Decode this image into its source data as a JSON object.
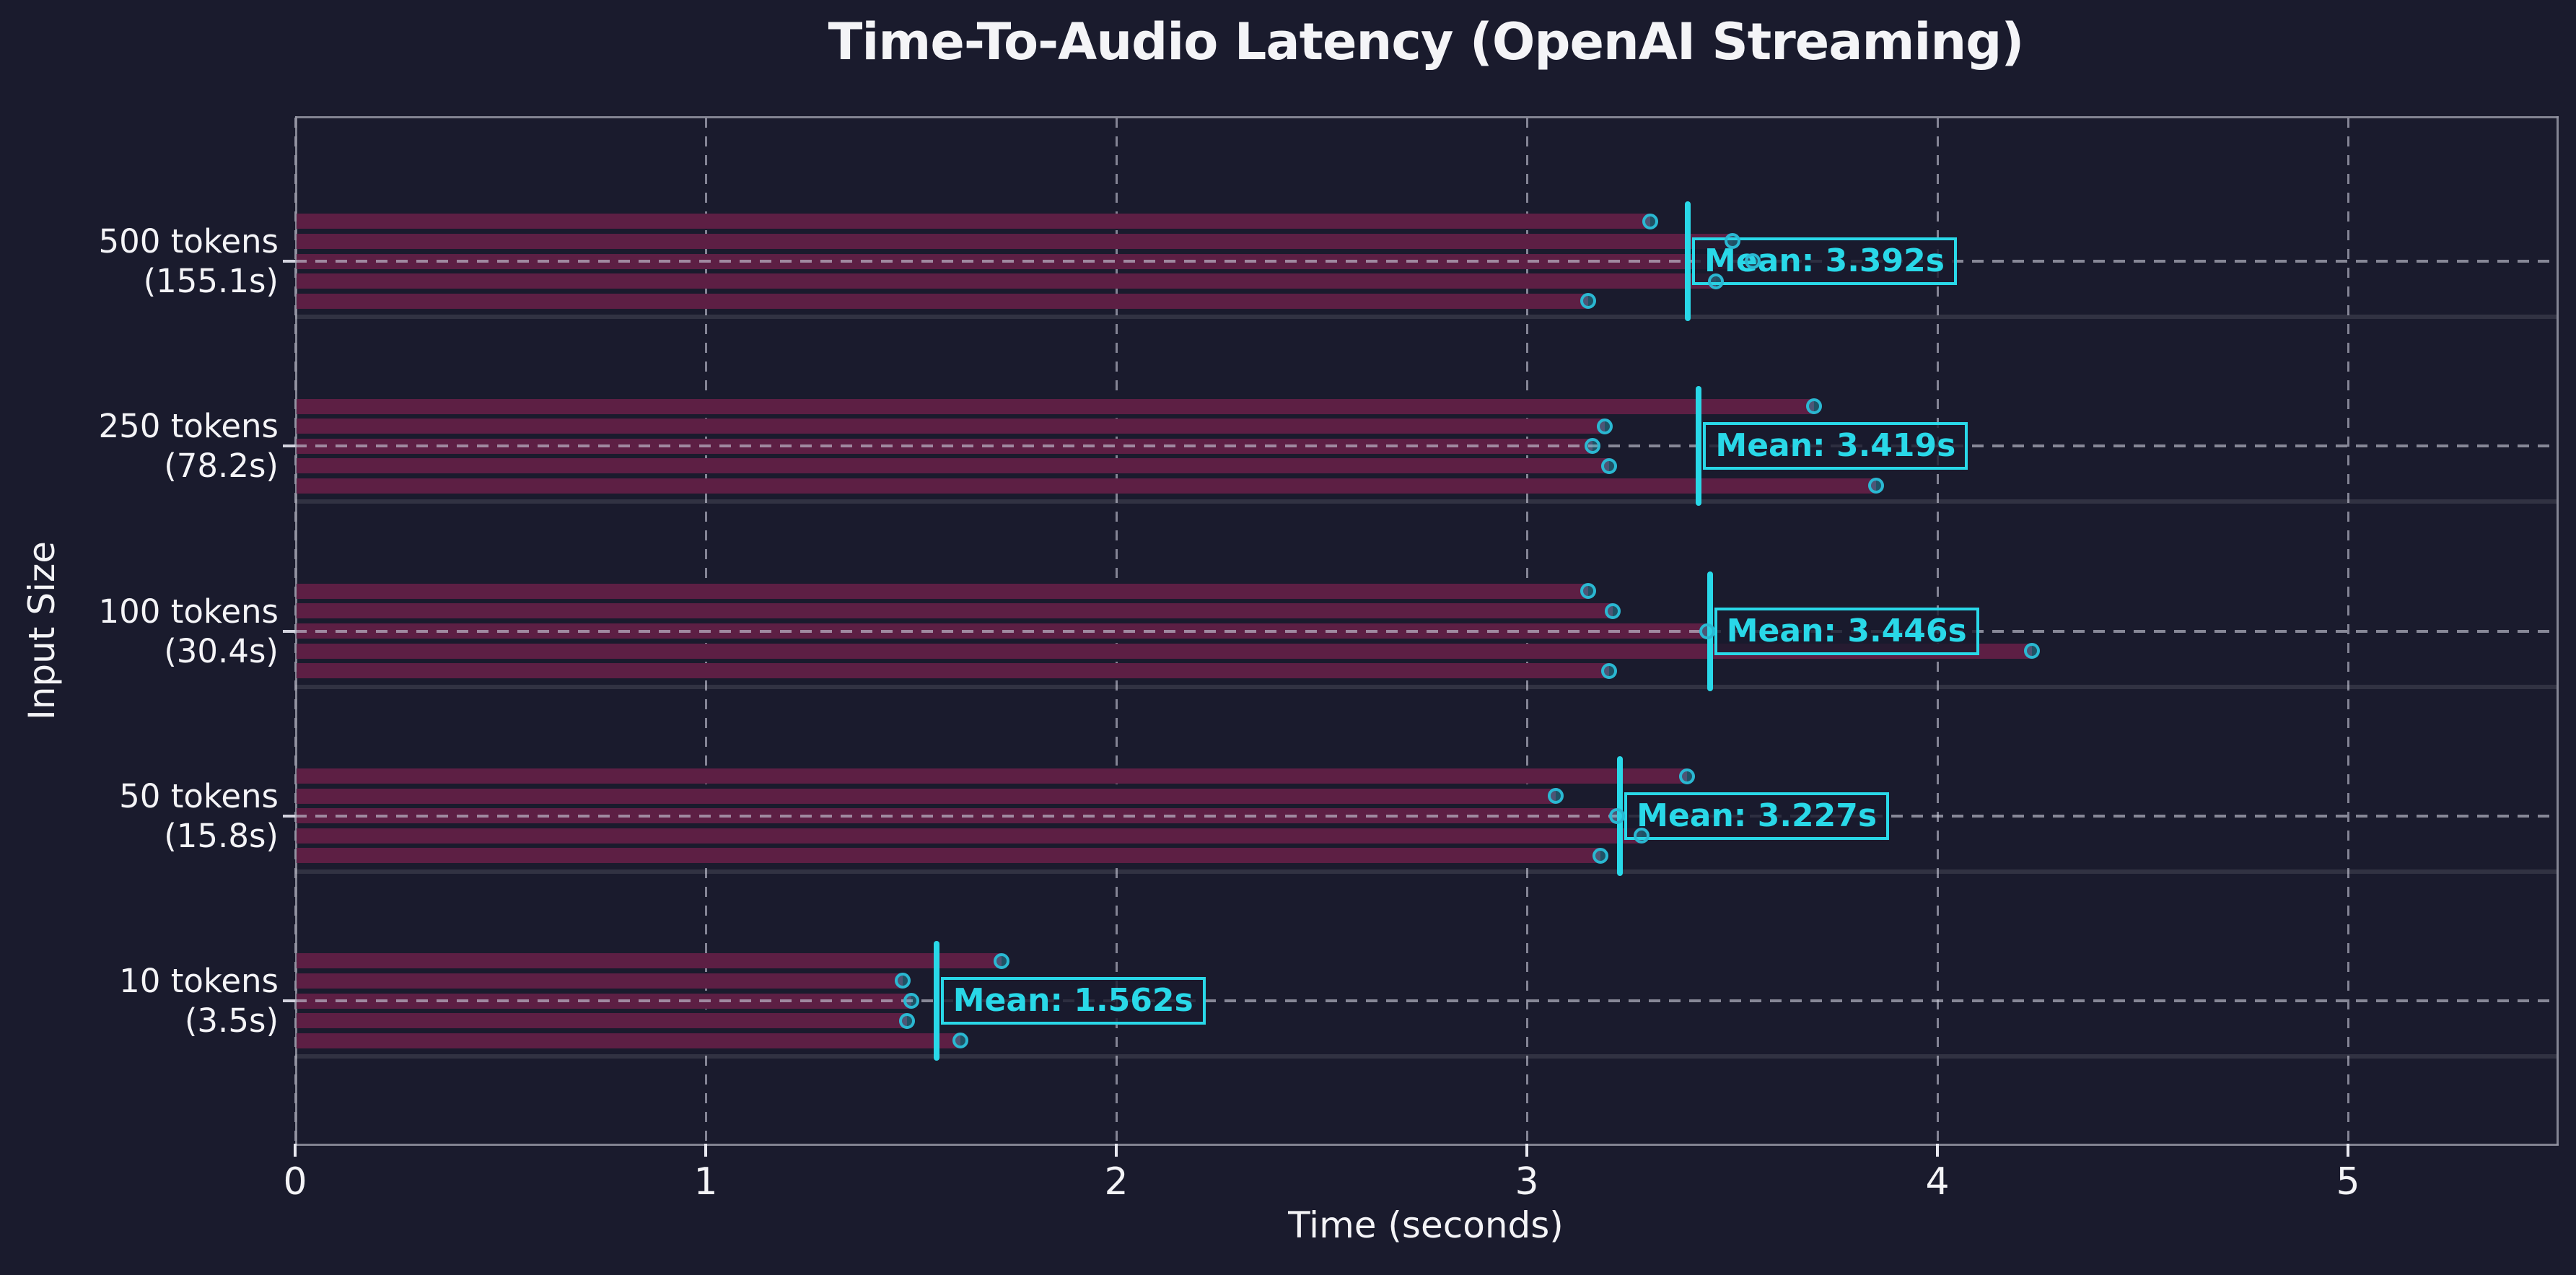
{
  "chart_data": {
    "type": "bar",
    "title": "Time-To-Audio Latency (OpenAI Streaming)",
    "xlabel": "Time (seconds)",
    "ylabel": "Input Size",
    "xlim": [
      0,
      5.51
    ],
    "grid": true,
    "legend": "none",
    "xticks": [
      {
        "label": "0",
        "value": 0
      },
      {
        "label": "1",
        "value": 1
      },
      {
        "label": "2",
        "value": 2
      },
      {
        "label": "3",
        "value": 3
      },
      {
        "label": "4",
        "value": 4
      },
      {
        "label": "5",
        "value": 5
      }
    ],
    "groups": [
      {
        "label_line1": "500 tokens",
        "label_line2": "(155.1s)",
        "mean": 3.392,
        "mean_label": "Mean: 3.392s",
        "runs": [
          3.3,
          3.5,
          3.55,
          3.46,
          3.15
        ]
      },
      {
        "label_line1": "250 tokens",
        "label_line2": "(78.2s)",
        "mean": 3.419,
        "mean_label": "Mean: 3.419s",
        "runs": [
          3.7,
          3.19,
          3.16,
          3.2,
          3.85
        ]
      },
      {
        "label_line1": "100 tokens",
        "label_line2": "(30.4s)",
        "mean": 3.446,
        "mean_label": "Mean: 3.446s",
        "runs": [
          3.15,
          3.21,
          3.44,
          4.23,
          3.2
        ]
      },
      {
        "label_line1": "50 tokens",
        "label_line2": "(15.8s)",
        "mean": 3.227,
        "mean_label": "Mean: 3.227s",
        "runs": [
          3.39,
          3.07,
          3.22,
          3.28,
          3.18
        ]
      },
      {
        "label_line1": "10 tokens",
        "label_line2": "(3.5s)",
        "mean": 1.562,
        "mean_label": "Mean: 1.562s",
        "runs": [
          1.72,
          1.48,
          1.5,
          1.49,
          1.62
        ]
      }
    ],
    "colors": {
      "background": "#1a1b2d",
      "bar": "#5d1f44",
      "accent": "#29d8e8",
      "dot_ring": "#2ab8d2",
      "text": "#f4f4f7",
      "grid": "#a8a8b8"
    }
  }
}
